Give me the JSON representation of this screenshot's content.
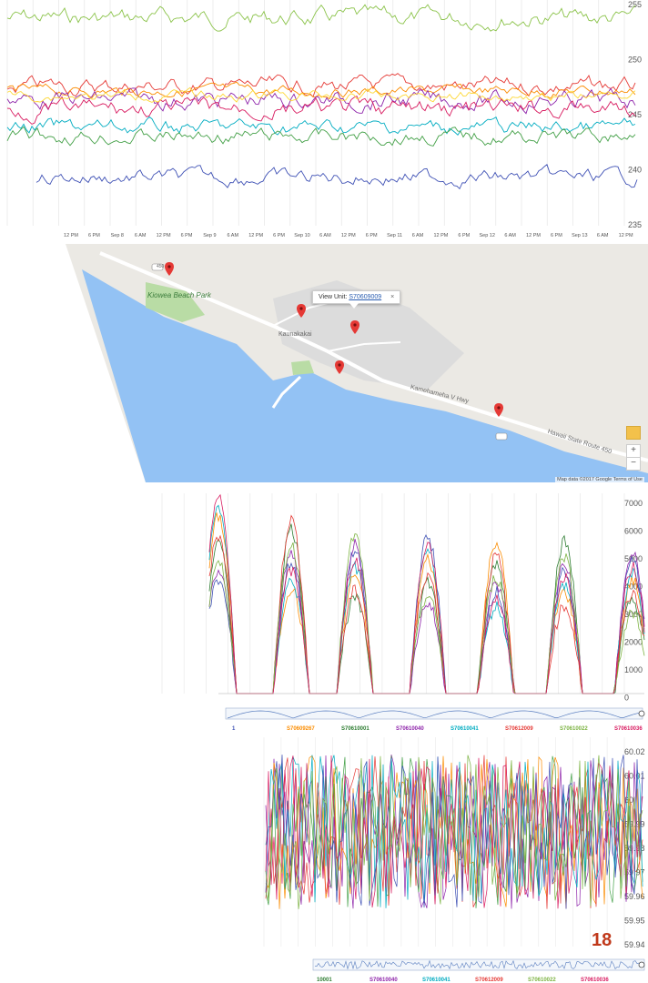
{
  "panel_voltage": {
    "yticks": [
      "255",
      "250",
      "245",
      "240",
      "235"
    ],
    "xticks": [
      "12 PM",
      "6 PM",
      "Sep 8",
      "6 AM",
      "12 PM",
      "6 PM",
      "Sep 9",
      "6 AM",
      "12 PM",
      "6 PM",
      "Sep 10",
      "6 AM",
      "12 PM",
      "6 PM",
      "Sep 11",
      "6 AM",
      "12 PM",
      "6 PM",
      "Sep 12",
      "6 AM",
      "12 PM",
      "6 PM",
      "Sep 13",
      "6 AM",
      "12 PM"
    ],
    "colors": [
      "#8bc34a",
      "#e53935",
      "#fb8c00",
      "#8e24aa",
      "#3f51b5",
      "#00acc1",
      "#43a047",
      "#d81b60",
      "#fdd835"
    ]
  },
  "map": {
    "road_labels": [
      "Kamehameha V Hwy",
      "Hawaii State Route 450",
      "Kaunakakai",
      "Kiowea Beach Park"
    ],
    "info_window": {
      "prefix": "View Unit:",
      "link": "S70609009",
      "close": "×"
    },
    "attribution": "Map data ©2017 Google  Terms of Use",
    "zoom_in": "+",
    "zoom_out": "−",
    "route_shield": "450"
  },
  "panel_power": {
    "yticks": [
      "7000",
      "6000",
      "5000",
      "4000",
      "3000",
      "2000",
      "1000",
      "0"
    ],
    "legend": [
      {
        "label": "1",
        "color": "#3f51b5"
      },
      {
        "label": "S70609267",
        "color": "#fb8c00"
      },
      {
        "label": "S70610001",
        "color": "#2e7d32"
      },
      {
        "label": "S70610040",
        "color": "#8e24aa"
      },
      {
        "label": "S70610041",
        "color": "#00acc1"
      },
      {
        "label": "S70612009",
        "color": "#e53935"
      },
      {
        "label": "S70610022",
        "color": "#7cb342"
      },
      {
        "label": "S70610036",
        "color": "#d81b60"
      }
    ]
  },
  "panel_freq": {
    "yticks": [
      "60.02",
      "60.01",
      "60",
      "59.99",
      "59.98",
      "59.97",
      "59.96",
      "59.95",
      "59.94"
    ],
    "legend": [
      {
        "label": "10001",
        "color": "#2e7d32"
      },
      {
        "label": "S70610040",
        "color": "#8e24aa"
      },
      {
        "label": "S70610041",
        "color": "#00acc1"
      },
      {
        "label": "S70612009",
        "color": "#e53935"
      },
      {
        "label": "S70610022",
        "color": "#7cb342"
      },
      {
        "label": "S70610036",
        "color": "#d81b60"
      }
    ],
    "badge": "18"
  }
}
